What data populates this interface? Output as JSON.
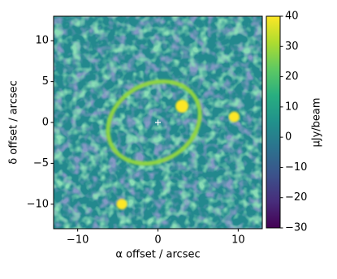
{
  "chart_data": {
    "type": "image",
    "xlabel": "α offset / arcsec",
    "ylabel": "δ offset / arcsec",
    "xlim": [
      -13,
      13
    ],
    "ylim": [
      -13,
      13
    ],
    "xticks": [
      {
        "value": -10,
        "label": "−10"
      },
      0,
      10
    ],
    "yticks": [
      {
        "value": -10,
        "label": "−10"
      },
      {
        "value": -5,
        "label": "−5"
      },
      0,
      5,
      10
    ],
    "ring": {
      "x": -0.5,
      "y": 0,
      "rx": 6,
      "ry": 4.7,
      "angle": 30,
      "value": 28
    },
    "sources": [
      {
        "x": 3,
        "y": 2,
        "value": 40
      },
      {
        "x": 9.5,
        "y": 0.7,
        "value": 40
      },
      {
        "x": -4.5,
        "y": -10,
        "value": 40
      }
    ],
    "marker": {
      "x": 0,
      "y": 0
    },
    "colormap": "viridis",
    "clim": [
      -30,
      40
    ],
    "cticks": [
      {
        "value": -30,
        "label": "−30"
      },
      {
        "value": -20,
        "label": "−20"
      },
      {
        "value": -10,
        "label": "−10"
      },
      0,
      10,
      20,
      30,
      40
    ],
    "colorbar_label": "μJy/beam"
  }
}
